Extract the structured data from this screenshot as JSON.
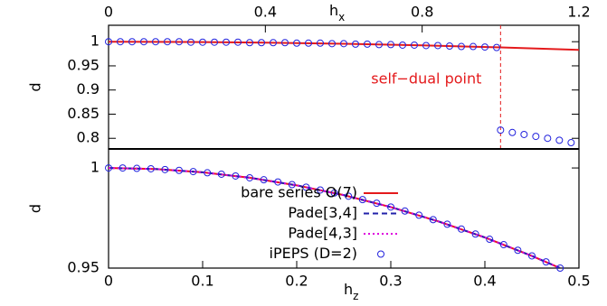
{
  "chart_data": [
    {
      "type": "line",
      "xlabel": "h",
      "xlabel_sub": "x",
      "ylabel": "d",
      "xaxis": "top",
      "xlim": [
        0,
        1.2
      ],
      "xticks": [
        0,
        0.4,
        0.8,
        1.2,
        {
          "value": 1.2,
          "label": "1.2"
        }
      ],
      "ylim": [
        0.778,
        1.034
      ],
      "yticks": [
        1,
        0.95,
        0.9,
        0.85,
        0.8
      ],
      "vline": {
        "x": 1.0,
        "color": "#e41a1c",
        "label": "self−dual point"
      },
      "series": [
        {
          "style": "solid",
          "color": "#e41a1c",
          "x": [
            0,
            0.2,
            0.4,
            0.6,
            0.8,
            1.0,
            1.2
          ],
          "values": [
            1,
            0.9995,
            0.9981,
            0.9958,
            0.9924,
            0.9882,
            0.983
          ]
        },
        {
          "style": "points",
          "color": "#2222dd",
          "x": [
            0,
            0.03,
            0.06,
            0.09,
            0.12,
            0.15,
            0.18,
            0.21,
            0.24,
            0.27,
            0.3,
            0.33,
            0.36,
            0.39,
            0.42,
            0.45,
            0.48,
            0.51,
            0.54,
            0.57,
            0.6,
            0.63,
            0.66,
            0.69,
            0.72,
            0.75,
            0.78,
            0.81,
            0.84,
            0.87,
            0.9,
            0.93,
            0.96,
            0.99,
            1.0,
            1.03,
            1.06,
            1.09,
            1.12,
            1.15,
            1.18
          ],
          "values": [
            1,
            1,
            1,
            1,
            1,
            1,
            1,
            0.999,
            0.999,
            0.999,
            0.999,
            0.999,
            0.998,
            0.998,
            0.998,
            0.998,
            0.997,
            0.997,
            0.997,
            0.996,
            0.996,
            0.995,
            0.995,
            0.994,
            0.994,
            0.993,
            0.993,
            0.992,
            0.992,
            0.991,
            0.99,
            0.99,
            0.989,
            0.988,
            0.817,
            0.812,
            0.808,
            0.804,
            0.8,
            0.796,
            0.791
          ]
        }
      ]
    },
    {
      "type": "line",
      "xlabel": "h",
      "xlabel_sub": "z",
      "ylabel": "d",
      "xaxis": "bottom",
      "xlim": [
        0,
        0.5
      ],
      "xticks": [
        0,
        0.1,
        0.2,
        0.3,
        0.4,
        0.5
      ],
      "ylim": [
        0.95,
        1.0095
      ],
      "yticks": [
        1,
        0.95
      ],
      "series": [
        {
          "name": "bare series O(7)",
          "style": "solid",
          "color": "#e41a1c",
          "x": [
            0,
            0.05,
            0.1,
            0.15,
            0.2,
            0.25,
            0.3,
            0.35,
            0.4,
            0.45,
            0.48
          ],
          "values": [
            1,
            0.99946,
            0.99783,
            0.99512,
            0.99132,
            0.98644,
            0.98047,
            0.97341,
            0.96528,
            0.95606,
            0.95
          ]
        },
        {
          "name": "Pade[3,4]",
          "style": "dashed",
          "color": "#2222aa",
          "x": [
            0,
            0.05,
            0.1,
            0.15,
            0.2,
            0.25,
            0.3,
            0.35,
            0.4,
            0.45,
            0.48
          ],
          "values": [
            1,
            0.99946,
            0.99783,
            0.99512,
            0.99132,
            0.98644,
            0.98047,
            0.97341,
            0.96528,
            0.95606,
            0.95
          ]
        },
        {
          "name": "Pade[4,3]",
          "style": "dotted",
          "color": "#dd00dd",
          "x": [
            0,
            0.05,
            0.1,
            0.15,
            0.2,
            0.25,
            0.3,
            0.35,
            0.4,
            0.45,
            0.48
          ],
          "values": [
            1,
            0.99946,
            0.99783,
            0.99512,
            0.99132,
            0.98644,
            0.98047,
            0.97341,
            0.96528,
            0.95606,
            0.95
          ]
        },
        {
          "name": "iPEPS (D=2)",
          "style": "points",
          "color": "#2222dd",
          "x": [
            0,
            0.015,
            0.03,
            0.045,
            0.06,
            0.075,
            0.09,
            0.105,
            0.12,
            0.135,
            0.15,
            0.165,
            0.18,
            0.195,
            0.21,
            0.225,
            0.24,
            0.255,
            0.27,
            0.285,
            0.3,
            0.315,
            0.33,
            0.345,
            0.36,
            0.375,
            0.39,
            0.405,
            0.42,
            0.435,
            0.45,
            0.465,
            0.48
          ],
          "values": [
            1,
            1,
            0.9998,
            0.9996,
            0.9992,
            0.9988,
            0.9982,
            0.9976,
            0.9969,
            0.996,
            0.9951,
            0.9941,
            0.993,
            0.9917,
            0.9904,
            0.989,
            0.9875,
            0.9859,
            0.9842,
            0.9824,
            0.9805,
            0.9785,
            0.9764,
            0.9742,
            0.9719,
            0.9695,
            0.967,
            0.9644,
            0.9617,
            0.9589,
            0.9561,
            0.9531,
            0.95
          ]
        }
      ]
    }
  ]
}
